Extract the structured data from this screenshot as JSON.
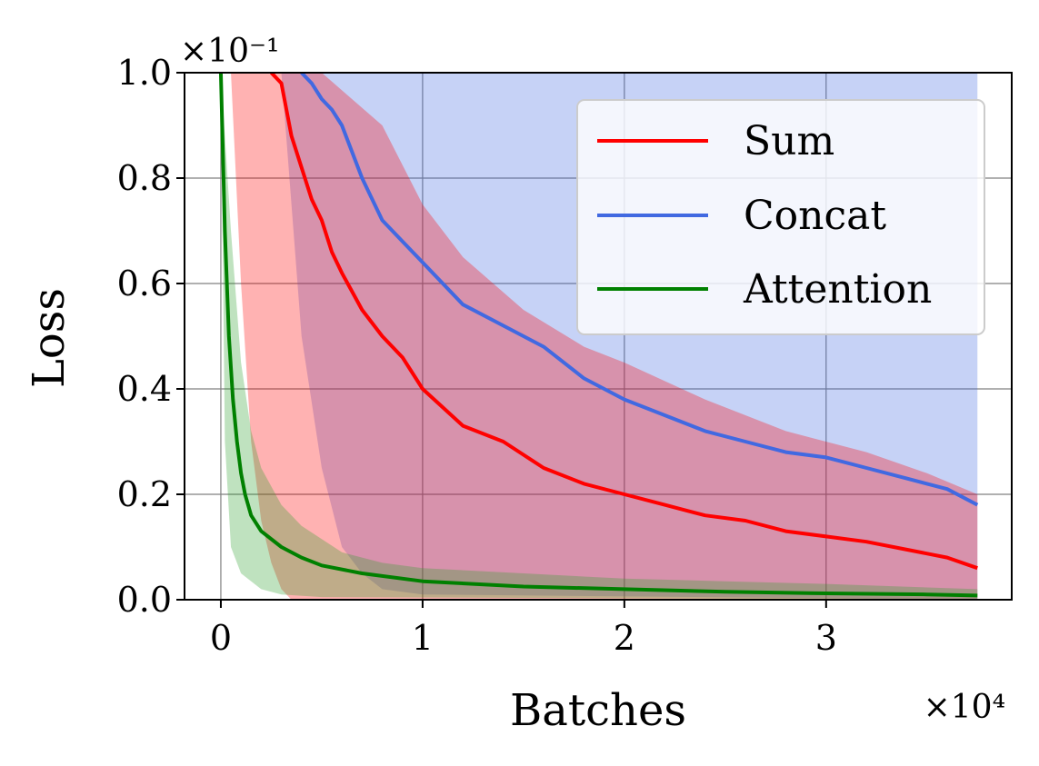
{
  "chart_data": {
    "type": "line",
    "xlabel": "Batches",
    "ylabel": "Loss",
    "x_multiplier": "×10⁴",
    "y_multiplier": "×10⁻¹",
    "xlim": [
      -0.18,
      3.92
    ],
    "ylim": [
      0.0,
      1.0
    ],
    "xticks": [
      0,
      1,
      2,
      3
    ],
    "xtick_labels": [
      "0",
      "1",
      "2",
      "3"
    ],
    "yticks": [
      0.0,
      0.2,
      0.4,
      0.6,
      0.8,
      1.0
    ],
    "ytick_labels": [
      "0.0",
      "0.2",
      "0.4",
      "0.6",
      "0.8",
      "1.0"
    ],
    "grid": true,
    "legend_position": "top-right",
    "series": [
      {
        "name": "Sum",
        "color": "#ff0000",
        "band_color": "#ff0000",
        "points": [
          [
            0.25,
            1.0
          ],
          [
            0.3,
            0.98
          ],
          [
            0.35,
            0.88
          ],
          [
            0.4,
            0.82
          ],
          [
            0.45,
            0.76
          ],
          [
            0.5,
            0.72
          ],
          [
            0.55,
            0.66
          ],
          [
            0.6,
            0.62
          ],
          [
            0.7,
            0.55
          ],
          [
            0.8,
            0.5
          ],
          [
            0.9,
            0.46
          ],
          [
            1.0,
            0.4
          ],
          [
            1.2,
            0.33
          ],
          [
            1.4,
            0.3
          ],
          [
            1.6,
            0.25
          ],
          [
            1.8,
            0.22
          ],
          [
            2.0,
            0.2
          ],
          [
            2.2,
            0.18
          ],
          [
            2.4,
            0.16
          ],
          [
            2.6,
            0.15
          ],
          [
            2.8,
            0.13
          ],
          [
            3.0,
            0.12
          ],
          [
            3.2,
            0.11
          ],
          [
            3.4,
            0.095
          ],
          [
            3.6,
            0.08
          ],
          [
            3.75,
            0.06
          ]
        ],
        "upper": [
          [
            0.1,
            1.0
          ],
          [
            0.5,
            1.0
          ],
          [
            0.8,
            0.9
          ],
          [
            1.0,
            0.75
          ],
          [
            1.2,
            0.65
          ],
          [
            1.5,
            0.55
          ],
          [
            1.8,
            0.48
          ],
          [
            2.0,
            0.45
          ],
          [
            2.4,
            0.38
          ],
          [
            2.8,
            0.32
          ],
          [
            3.2,
            0.28
          ],
          [
            3.5,
            0.24
          ],
          [
            3.75,
            0.2
          ]
        ],
        "lower": [
          [
            0.05,
            1.0
          ],
          [
            0.1,
            0.6
          ],
          [
            0.15,
            0.3
          ],
          [
            0.2,
            0.15
          ],
          [
            0.25,
            0.07
          ],
          [
            0.3,
            0.02
          ],
          [
            0.35,
            0.0
          ],
          [
            3.75,
            0.0
          ]
        ]
      },
      {
        "name": "Concat",
        "color": "#4169e1",
        "band_color": "#4169e1",
        "points": [
          [
            0.4,
            1.0
          ],
          [
            0.45,
            0.98
          ],
          [
            0.5,
            0.95
          ],
          [
            0.55,
            0.93
          ],
          [
            0.6,
            0.9
          ],
          [
            0.65,
            0.85
          ],
          [
            0.7,
            0.8
          ],
          [
            0.75,
            0.76
          ],
          [
            0.8,
            0.72
          ],
          [
            0.9,
            0.68
          ],
          [
            1.0,
            0.64
          ],
          [
            1.2,
            0.56
          ],
          [
            1.4,
            0.52
          ],
          [
            1.6,
            0.48
          ],
          [
            1.8,
            0.42
          ],
          [
            2.0,
            0.38
          ],
          [
            2.2,
            0.35
          ],
          [
            2.4,
            0.32
          ],
          [
            2.6,
            0.3
          ],
          [
            2.8,
            0.28
          ],
          [
            3.0,
            0.27
          ],
          [
            3.2,
            0.25
          ],
          [
            3.4,
            0.23
          ],
          [
            3.6,
            0.21
          ],
          [
            3.75,
            0.18
          ]
        ],
        "upper": [
          [
            0.3,
            1.0
          ],
          [
            3.75,
            1.0
          ]
        ],
        "lower": [
          [
            0.3,
            1.0
          ],
          [
            0.4,
            0.5
          ],
          [
            0.5,
            0.25
          ],
          [
            0.6,
            0.1
          ],
          [
            0.7,
            0.05
          ],
          [
            0.8,
            0.02
          ],
          [
            1.0,
            0.01
          ],
          [
            3.75,
            0.0
          ]
        ]
      },
      {
        "name": "Attention",
        "color": "#008000",
        "band_color": "#2ca02c",
        "points": [
          [
            0.0,
            1.0
          ],
          [
            0.02,
            0.7
          ],
          [
            0.04,
            0.5
          ],
          [
            0.06,
            0.38
          ],
          [
            0.08,
            0.3
          ],
          [
            0.1,
            0.24
          ],
          [
            0.12,
            0.2
          ],
          [
            0.15,
            0.16
          ],
          [
            0.2,
            0.13
          ],
          [
            0.3,
            0.1
          ],
          [
            0.4,
            0.08
          ],
          [
            0.5,
            0.065
          ],
          [
            0.7,
            0.05
          ],
          [
            1.0,
            0.035
          ],
          [
            1.5,
            0.025
          ],
          [
            2.0,
            0.02
          ],
          [
            2.5,
            0.015
          ],
          [
            3.0,
            0.012
          ],
          [
            3.5,
            0.01
          ],
          [
            3.75,
            0.008
          ]
        ],
        "upper": [
          [
            0.0,
            1.0
          ],
          [
            0.05,
            0.7
          ],
          [
            0.1,
            0.45
          ],
          [
            0.15,
            0.32
          ],
          [
            0.2,
            0.25
          ],
          [
            0.3,
            0.18
          ],
          [
            0.4,
            0.14
          ],
          [
            0.6,
            0.09
          ],
          [
            0.8,
            0.07
          ],
          [
            1.0,
            0.06
          ],
          [
            1.5,
            0.05
          ],
          [
            2.0,
            0.04
          ],
          [
            2.5,
            0.035
          ],
          [
            3.0,
            0.03
          ],
          [
            3.75,
            0.02
          ]
        ],
        "lower": [
          [
            0.0,
            1.0
          ],
          [
            0.02,
            0.3
          ],
          [
            0.05,
            0.1
          ],
          [
            0.1,
            0.05
          ],
          [
            0.2,
            0.02
          ],
          [
            0.3,
            0.01
          ],
          [
            0.5,
            0.005
          ],
          [
            3.75,
            0.0
          ]
        ]
      }
    ]
  }
}
